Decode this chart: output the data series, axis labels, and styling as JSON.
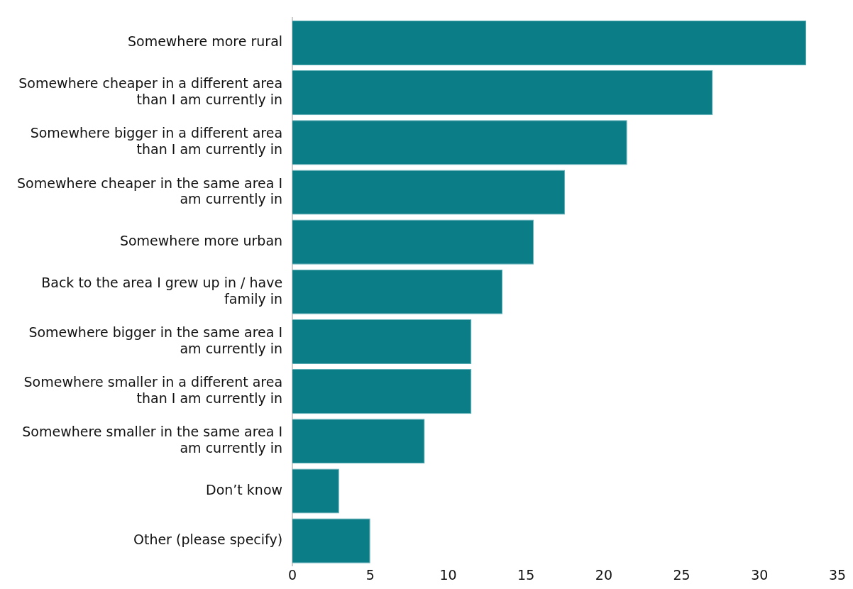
{
  "chart_data": {
    "type": "bar",
    "orientation": "horizontal",
    "categories": [
      "Somewhere more rural",
      "Somewhere cheaper in a different area than I am currently in",
      "Somewhere bigger in a different area than I am currently in",
      "Somewhere cheaper in the same area I am currently in",
      "Somewhere more urban",
      "Back to the area I grew up in / have family in",
      "Somewhere bigger in the same area I am currently in",
      "Somewhere smaller in a different area than I am currently in",
      "Somewhere smaller in the same area I am currently in",
      "Don’t know",
      "Other (please specify)"
    ],
    "values": [
      33,
      27,
      21.5,
      17.5,
      15.5,
      13.5,
      11.5,
      11.5,
      8.5,
      3,
      5
    ],
    "color": "#0a7d87",
    "xlim": [
      0,
      35
    ],
    "xticks": [
      0,
      5,
      10,
      15,
      20,
      25,
      30,
      35
    ],
    "grid": false,
    "legend": false
  }
}
